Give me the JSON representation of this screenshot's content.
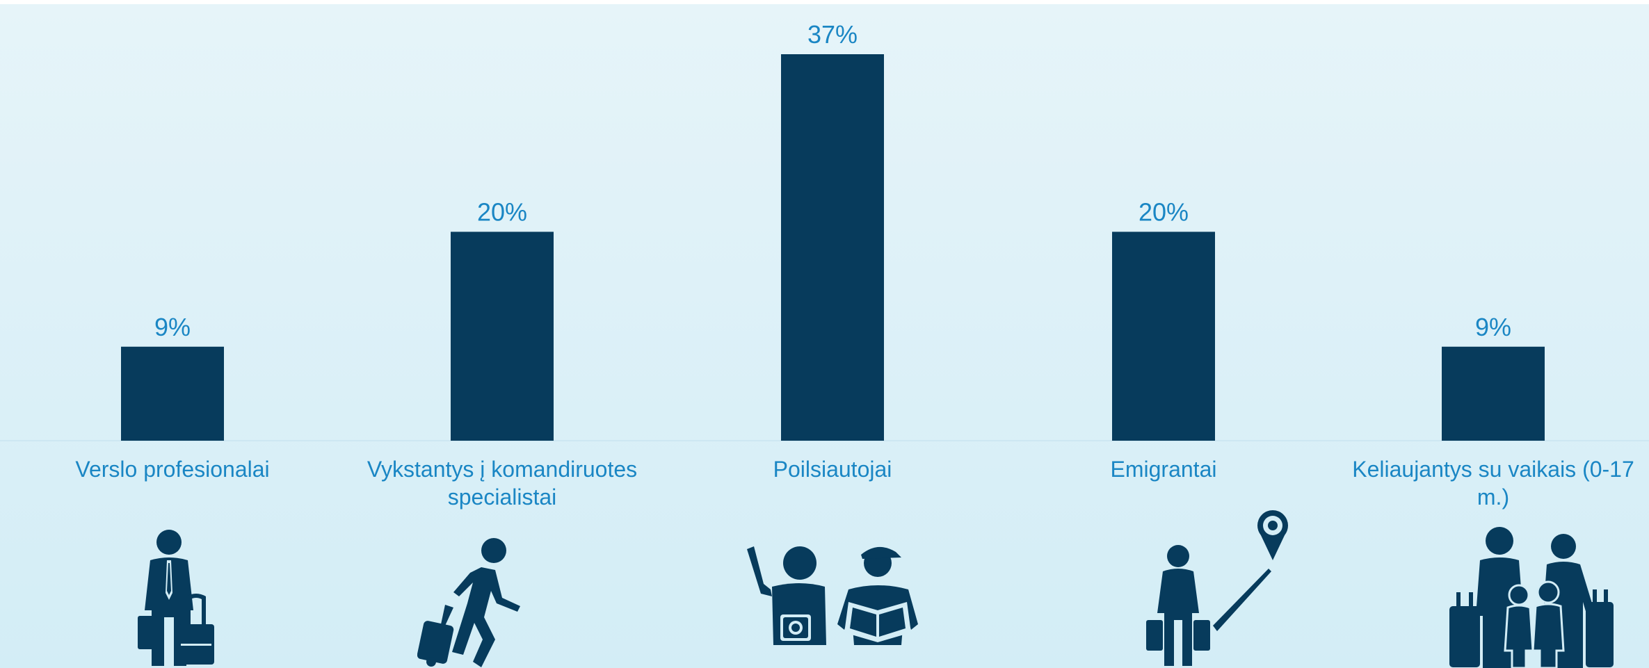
{
  "chart_data": {
    "type": "bar",
    "categories": [
      "Verslo profesionalai",
      "Vykstantys į komandiruotes specialistai",
      "Poilsiautojai",
      "Emigrantai",
      "Keliaujantys su vaikais (0-17 m.)"
    ],
    "values": [
      9,
      20,
      37,
      20,
      9
    ],
    "value_labels": [
      "9%",
      "20%",
      "37%",
      "20%",
      "9%"
    ],
    "unit": "%",
    "ylim": [
      0,
      37
    ],
    "grid": false,
    "legend": "none",
    "colors": {
      "bar": "#073b5c",
      "label": "#1a86c4",
      "icon": "#073b5c"
    }
  },
  "icons": [
    "business-traveler-icon",
    "walking-traveler-icon",
    "tourists-icon",
    "emigrant-icon",
    "family-travel-icon"
  ]
}
